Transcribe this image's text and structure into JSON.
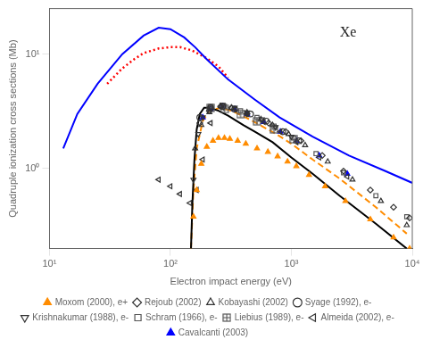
{
  "chart_data": {
    "type": "scatter",
    "title": "Xe",
    "x_label": "Electron impact energy (eV)",
    "y_label": "Quadruple ionization cross sections (Mb)",
    "log": true,
    "grid": false,
    "legend": "bottom",
    "xlim": [
      10,
      10000
    ],
    "ylim": [
      0.2,
      25
    ],
    "xticks": [
      {
        "value": 10,
        "label": "10¹"
      },
      {
        "value": 100,
        "label": "10²"
      },
      {
        "value": 1000,
        "label": "10³"
      },
      {
        "value": 10000,
        "label": "10⁴"
      }
    ],
    "yticks": [
      {
        "value": 1,
        "label": "10⁰"
      },
      {
        "value": 10,
        "label": "10¹"
      }
    ],
    "series": [
      {
        "type": "line",
        "color": "#0000ff",
        "line_style": "solid",
        "x": [
          13,
          17,
          25,
          40,
          60,
          80,
          100,
          130,
          160,
          200,
          300,
          500,
          800,
          1500,
          3000,
          6000,
          10000
        ],
        "values": [
          1.5,
          3.0,
          5.5,
          10.0,
          14.5,
          17.0,
          16.5,
          14.0,
          11.5,
          9.0,
          6.0,
          4.0,
          2.8,
          1.9,
          1.3,
          0.95,
          0.75
        ]
      },
      {
        "type": "line",
        "color": "#ff0000",
        "line_style": "dotted",
        "x": [
          30,
          40,
          50,
          60,
          80,
          100,
          120,
          150,
          200,
          250,
          300
        ],
        "values": [
          5.5,
          7.5,
          9.0,
          10.2,
          11.2,
          11.5,
          11.5,
          10.8,
          9.2,
          7.8,
          6.2
        ]
      },
      {
        "type": "line",
        "color": "#000000",
        "line_style": "solid",
        "x": [
          148,
          152,
          158,
          165,
          175,
          190,
          210,
          250,
          300,
          400,
          500,
          700,
          1000,
          1500,
          2500,
          5000,
          9000
        ],
        "values": [
          0.2,
          0.5,
          1.2,
          2.2,
          3.0,
          3.4,
          3.4,
          3.2,
          2.9,
          2.4,
          2.1,
          1.7,
          1.25,
          0.9,
          0.58,
          0.33,
          0.2
        ]
      },
      {
        "type": "line",
        "color": "#ff8c00",
        "line_style": "dashed",
        "x": [
          148,
          155,
          165,
          185,
          210,
          260,
          320,
          420,
          550,
          750,
          1000,
          1500,
          2500,
          5000,
          9000
        ],
        "values": [
          0.2,
          0.65,
          1.5,
          2.6,
          3.2,
          3.4,
          3.2,
          2.8,
          2.4,
          2.0,
          1.65,
          1.2,
          0.82,
          0.46,
          0.27
        ]
      },
      {
        "type": "scatter",
        "name": "Moxom (2000), e+",
        "color": "#ff8c00",
        "marker": "triangle",
        "x": [
          155,
          165,
          180,
          200,
          225,
          250,
          280,
          310,
          360,
          420,
          520,
          640,
          770,
          930,
          1100,
          1400,
          1900,
          2800,
          4500,
          7000,
          9500
        ],
        "values": [
          0.38,
          0.65,
          1.1,
          1.55,
          1.75,
          1.85,
          1.85,
          1.82,
          1.75,
          1.65,
          1.5,
          1.4,
          1.28,
          1.15,
          1.05,
          0.88,
          0.7,
          0.52,
          0.36,
          0.25,
          0.2
        ]
      },
      {
        "type": "scatter",
        "name": "Rejoub (2002)",
        "color": "#333333",
        "marker": "open-diamond",
        "x": [
          175,
          210,
          260,
          320,
          430,
          650,
          900,
          1200,
          1800,
          2700,
          4500,
          7000,
          9500
        ],
        "values": [
          2.5,
          3.2,
          3.5,
          3.4,
          3.0,
          2.5,
          2.1,
          1.75,
          1.3,
          0.95,
          0.65,
          0.46,
          0.37
        ]
      },
      {
        "type": "scatter",
        "name": "Kobayashi (2002)",
        "color": "#333333",
        "marker": "open-triangle",
        "x": [
          160,
          180,
          210,
          260,
          320,
          430,
          560,
          700,
          950,
          1300,
          2000,
          3200,
          5500,
          9000
        ],
        "values": [
          1.5,
          2.4,
          3.1,
          3.5,
          3.4,
          3.1,
          2.7,
          2.4,
          2.0,
          1.6,
          1.15,
          0.8,
          0.52,
          0.32
        ]
      },
      {
        "type": "scatter",
        "name": "Syage (1992), e-",
        "color": "#333333",
        "marker": "open-circle",
        "x": [
          175,
          215,
          270,
          340,
          460,
          620,
          850,
          1150
        ],
        "values": [
          2.8,
          3.4,
          3.5,
          3.3,
          3.0,
          2.6,
          2.1,
          1.75
        ]
      },
      {
        "type": "scatter",
        "name": "Krishnakumar (1988), e-",
        "color": "#333333",
        "marker": "open-triangle-down",
        "x": [
          155,
          170,
          185,
          215,
          270,
          340,
          430,
          570,
          740,
          1000
        ],
        "values": [
          0.8,
          2.0,
          2.8,
          3.4,
          3.6,
          3.4,
          3.1,
          2.7,
          2.3,
          1.9
        ]
      },
      {
        "type": "scatter",
        "name": "Schram (1966), e-",
        "color": "#555555",
        "marker": "open-square",
        "x": [
          215,
          280,
          380,
          520,
          720,
          1050,
          1600,
          2700,
          5000,
          9000
        ],
        "values": [
          3.5,
          3.5,
          3.2,
          2.8,
          2.35,
          1.85,
          1.35,
          0.92,
          0.58,
          0.38
        ]
      },
      {
        "type": "scatter",
        "name": "Liebius (1989), e-",
        "color": "#555555",
        "marker": "open-square-cross",
        "x": [
          215,
          280,
          380,
          520,
          720,
          1050
        ],
        "values": [
          3.4,
          3.3,
          3.0,
          2.6,
          2.2,
          1.8
        ]
      },
      {
        "type": "scatter",
        "name": "Almeida (2002), e-",
        "color": "#333333",
        "marker": "open-triangle-left",
        "x": [
          80,
          100,
          120,
          145,
          165,
          185,
          215,
          270,
          340,
          430,
          590,
          810,
          1100,
          1700,
          2900
        ],
        "values": [
          0.8,
          0.7,
          0.6,
          0.5,
          0.65,
          1.2,
          2.5,
          3.4,
          3.3,
          3.0,
          2.55,
          2.1,
          1.7,
          1.25,
          0.85
        ]
      },
      {
        "type": "scatter",
        "name": "Cavalcanti (2003)",
        "color": "#0000ff",
        "marker": "triangle",
        "x": [
          185,
          215,
          270,
          340,
          430,
          590,
          810,
          1100,
          1700,
          2900
        ],
        "values": [
          2.8,
          3.3,
          3.5,
          3.3,
          3.0,
          2.55,
          2.1,
          1.75,
          1.3,
          0.9
        ]
      }
    ]
  }
}
